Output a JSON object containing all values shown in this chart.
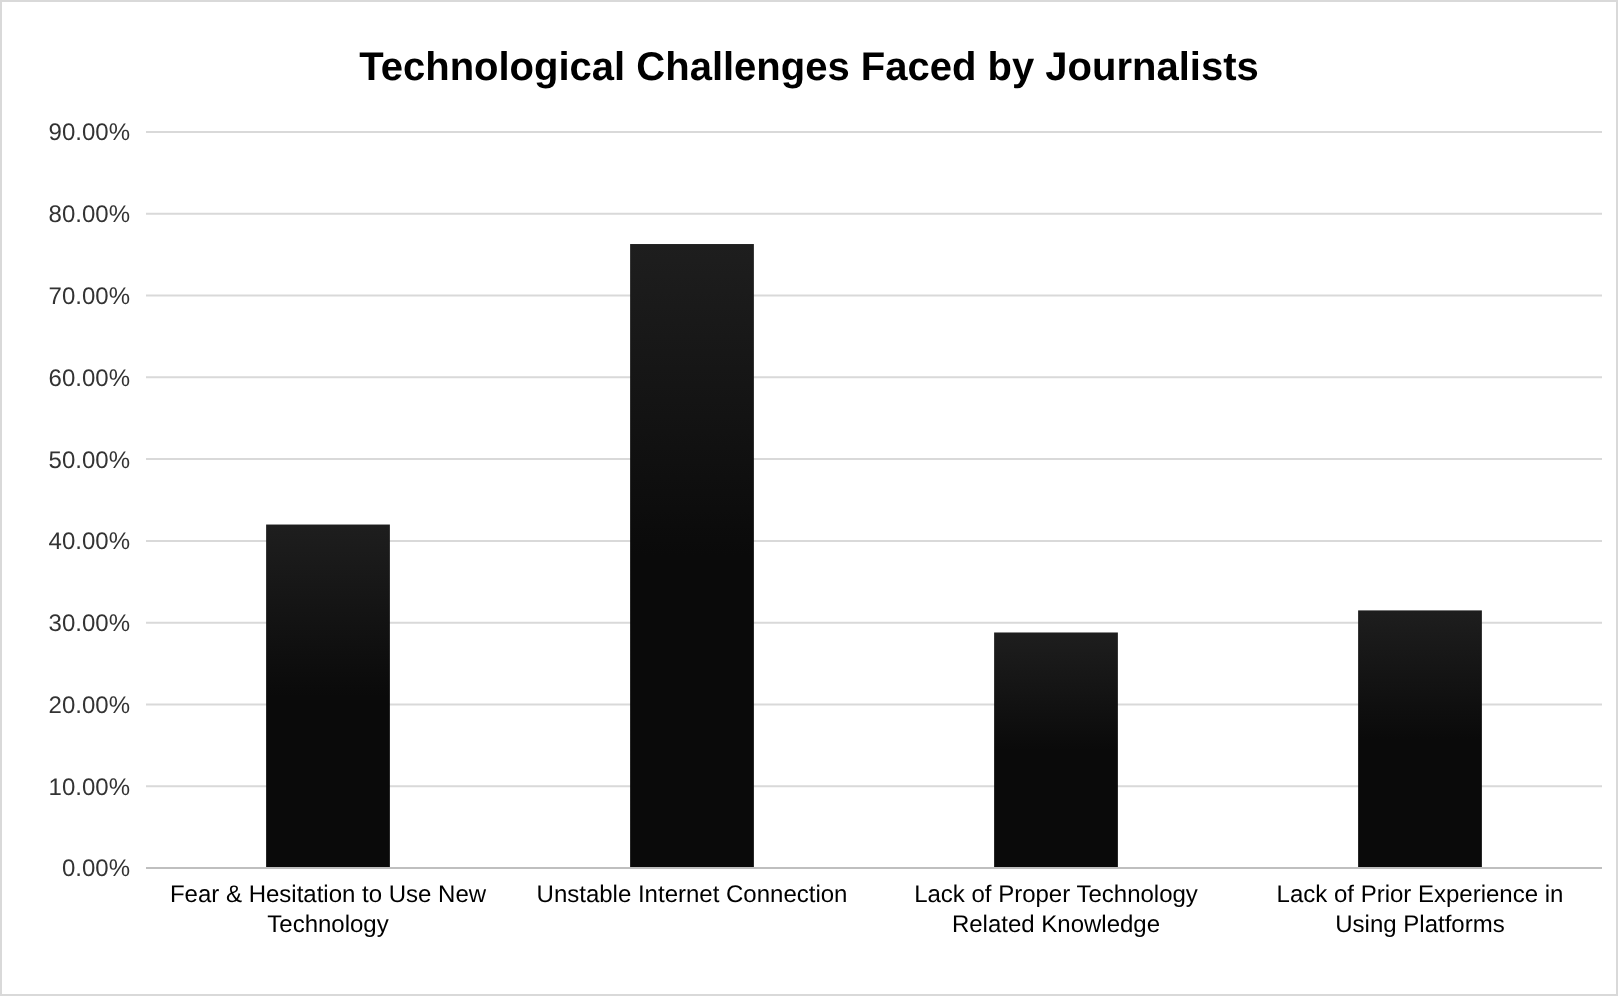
{
  "chart_data": {
    "type": "bar",
    "title": "Technological Challenges Faced by Journalists",
    "categories": [
      "Fear & Hesitation to Use New Technology",
      "Unstable Internet Connection",
      "Lack of Proper Technology Related Knowledge",
      "Lack of Prior Experience in Using Platforms"
    ],
    "values": [
      42,
      76.3,
      28.8,
      31.5
    ],
    "color": "#0a0a0a",
    "ylim": [
      0,
      90
    ],
    "yticks": [
      {
        "value": 0,
        "label": "0.00%"
      },
      {
        "value": 10,
        "label": "10.00%"
      },
      {
        "value": 20,
        "label": "20.00%"
      },
      {
        "value": 30,
        "label": "30.00%"
      },
      {
        "value": 40,
        "label": "40.00%"
      },
      {
        "value": 50,
        "label": "50.00%"
      },
      {
        "value": 60,
        "label": "60.00%"
      },
      {
        "value": 70,
        "label": "70.00%"
      },
      {
        "value": 80,
        "label": "80.00%"
      },
      {
        "value": 90,
        "label": "90.00%"
      }
    ],
    "grid": "y"
  }
}
